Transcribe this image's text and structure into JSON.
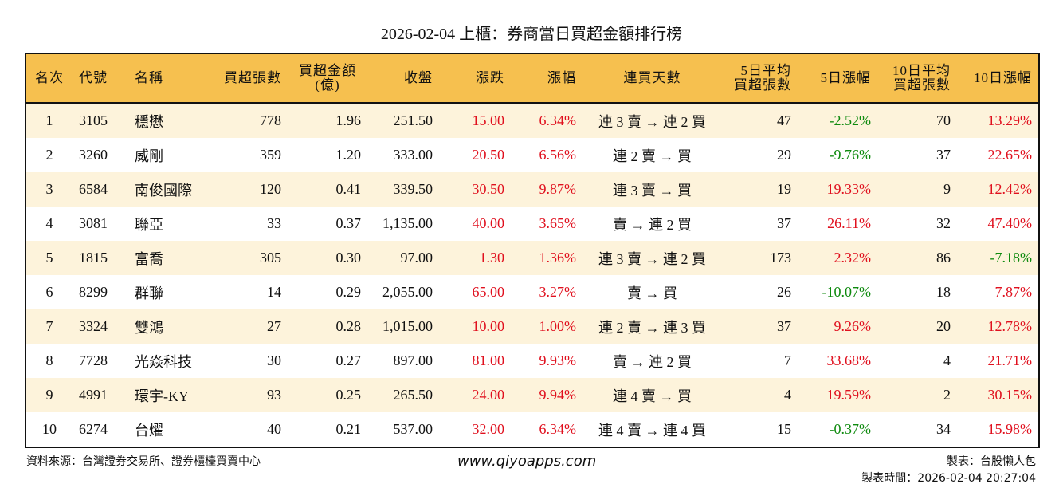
{
  "title": "2026-02-04 上櫃：券商當日買超金額排行榜",
  "chart_data": {
    "type": "table",
    "columns": [
      "名次",
      "代號",
      "名稱",
      "買超張數",
      "買超金額\n(億)",
      "收盤",
      "漲跌",
      "漲幅",
      "連買天數",
      "5日平均\n買超張數",
      "5日漲幅",
      "10日平均\n買超張數",
      "10日漲幅"
    ],
    "rows": [
      [
        "1",
        "3105",
        "穩懋",
        "778",
        "1.96",
        "251.50",
        "15.00",
        "6.34%",
        "連 3 賣 → 連 2 買",
        "47",
        "-2.52%",
        "70",
        "13.29%"
      ],
      [
        "2",
        "3260",
        "威剛",
        "359",
        "1.20",
        "333.00",
        "20.50",
        "6.56%",
        "連 2 賣 → 買",
        "29",
        "-9.76%",
        "37",
        "22.65%"
      ],
      [
        "3",
        "6584",
        "南俊國際",
        "120",
        "0.41",
        "339.50",
        "30.50",
        "9.87%",
        "連 3 賣 → 買",
        "19",
        "19.33%",
        "9",
        "12.42%"
      ],
      [
        "4",
        "3081",
        "聯亞",
        "33",
        "0.37",
        "1,135.00",
        "40.00",
        "3.65%",
        "賣 → 連 2 買",
        "37",
        "26.11%",
        "32",
        "47.40%"
      ],
      [
        "5",
        "1815",
        "富喬",
        "305",
        "0.30",
        "97.00",
        "1.30",
        "1.36%",
        "連 3 賣 → 連 2 買",
        "173",
        "2.32%",
        "86",
        "-7.18%"
      ],
      [
        "6",
        "8299",
        "群聯",
        "14",
        "0.29",
        "2,055.00",
        "65.00",
        "3.27%",
        "賣 → 買",
        "26",
        "-10.07%",
        "18",
        "7.87%"
      ],
      [
        "7",
        "3324",
        "雙鴻",
        "27",
        "0.28",
        "1,015.00",
        "10.00",
        "1.00%",
        "連 2 賣 → 連 3 買",
        "37",
        "9.26%",
        "20",
        "12.78%"
      ],
      [
        "8",
        "7728",
        "光焱科技",
        "30",
        "0.27",
        "897.00",
        "81.00",
        "9.93%",
        "賣 → 連 2 買",
        "7",
        "33.68%",
        "4",
        "21.71%"
      ],
      [
        "9",
        "4991",
        "環宇-KY",
        "93",
        "0.25",
        "265.50",
        "24.00",
        "9.94%",
        "連 4 賣 → 買",
        "4",
        "19.59%",
        "2",
        "30.15%"
      ],
      [
        "10",
        "6274",
        "台燿",
        "40",
        "0.21",
        "537.00",
        "32.00",
        "6.34%",
        "連 4 賣 → 連 4 買",
        "15",
        "-0.37%",
        "34",
        "15.98%"
      ]
    ],
    "colors": {
      "header": "#F6C04F",
      "stripe": "#FDF3DB",
      "up": "#E0101E",
      "down": "#0E8A0E"
    }
  },
  "footer": {
    "source": "資料來源：台灣證券交易所、證券櫃檯買賣中心",
    "site": "www.qiyoapps.com",
    "author": "製表：台股懶人包",
    "time": "製表時間：2026-02-04 20:27:04"
  }
}
